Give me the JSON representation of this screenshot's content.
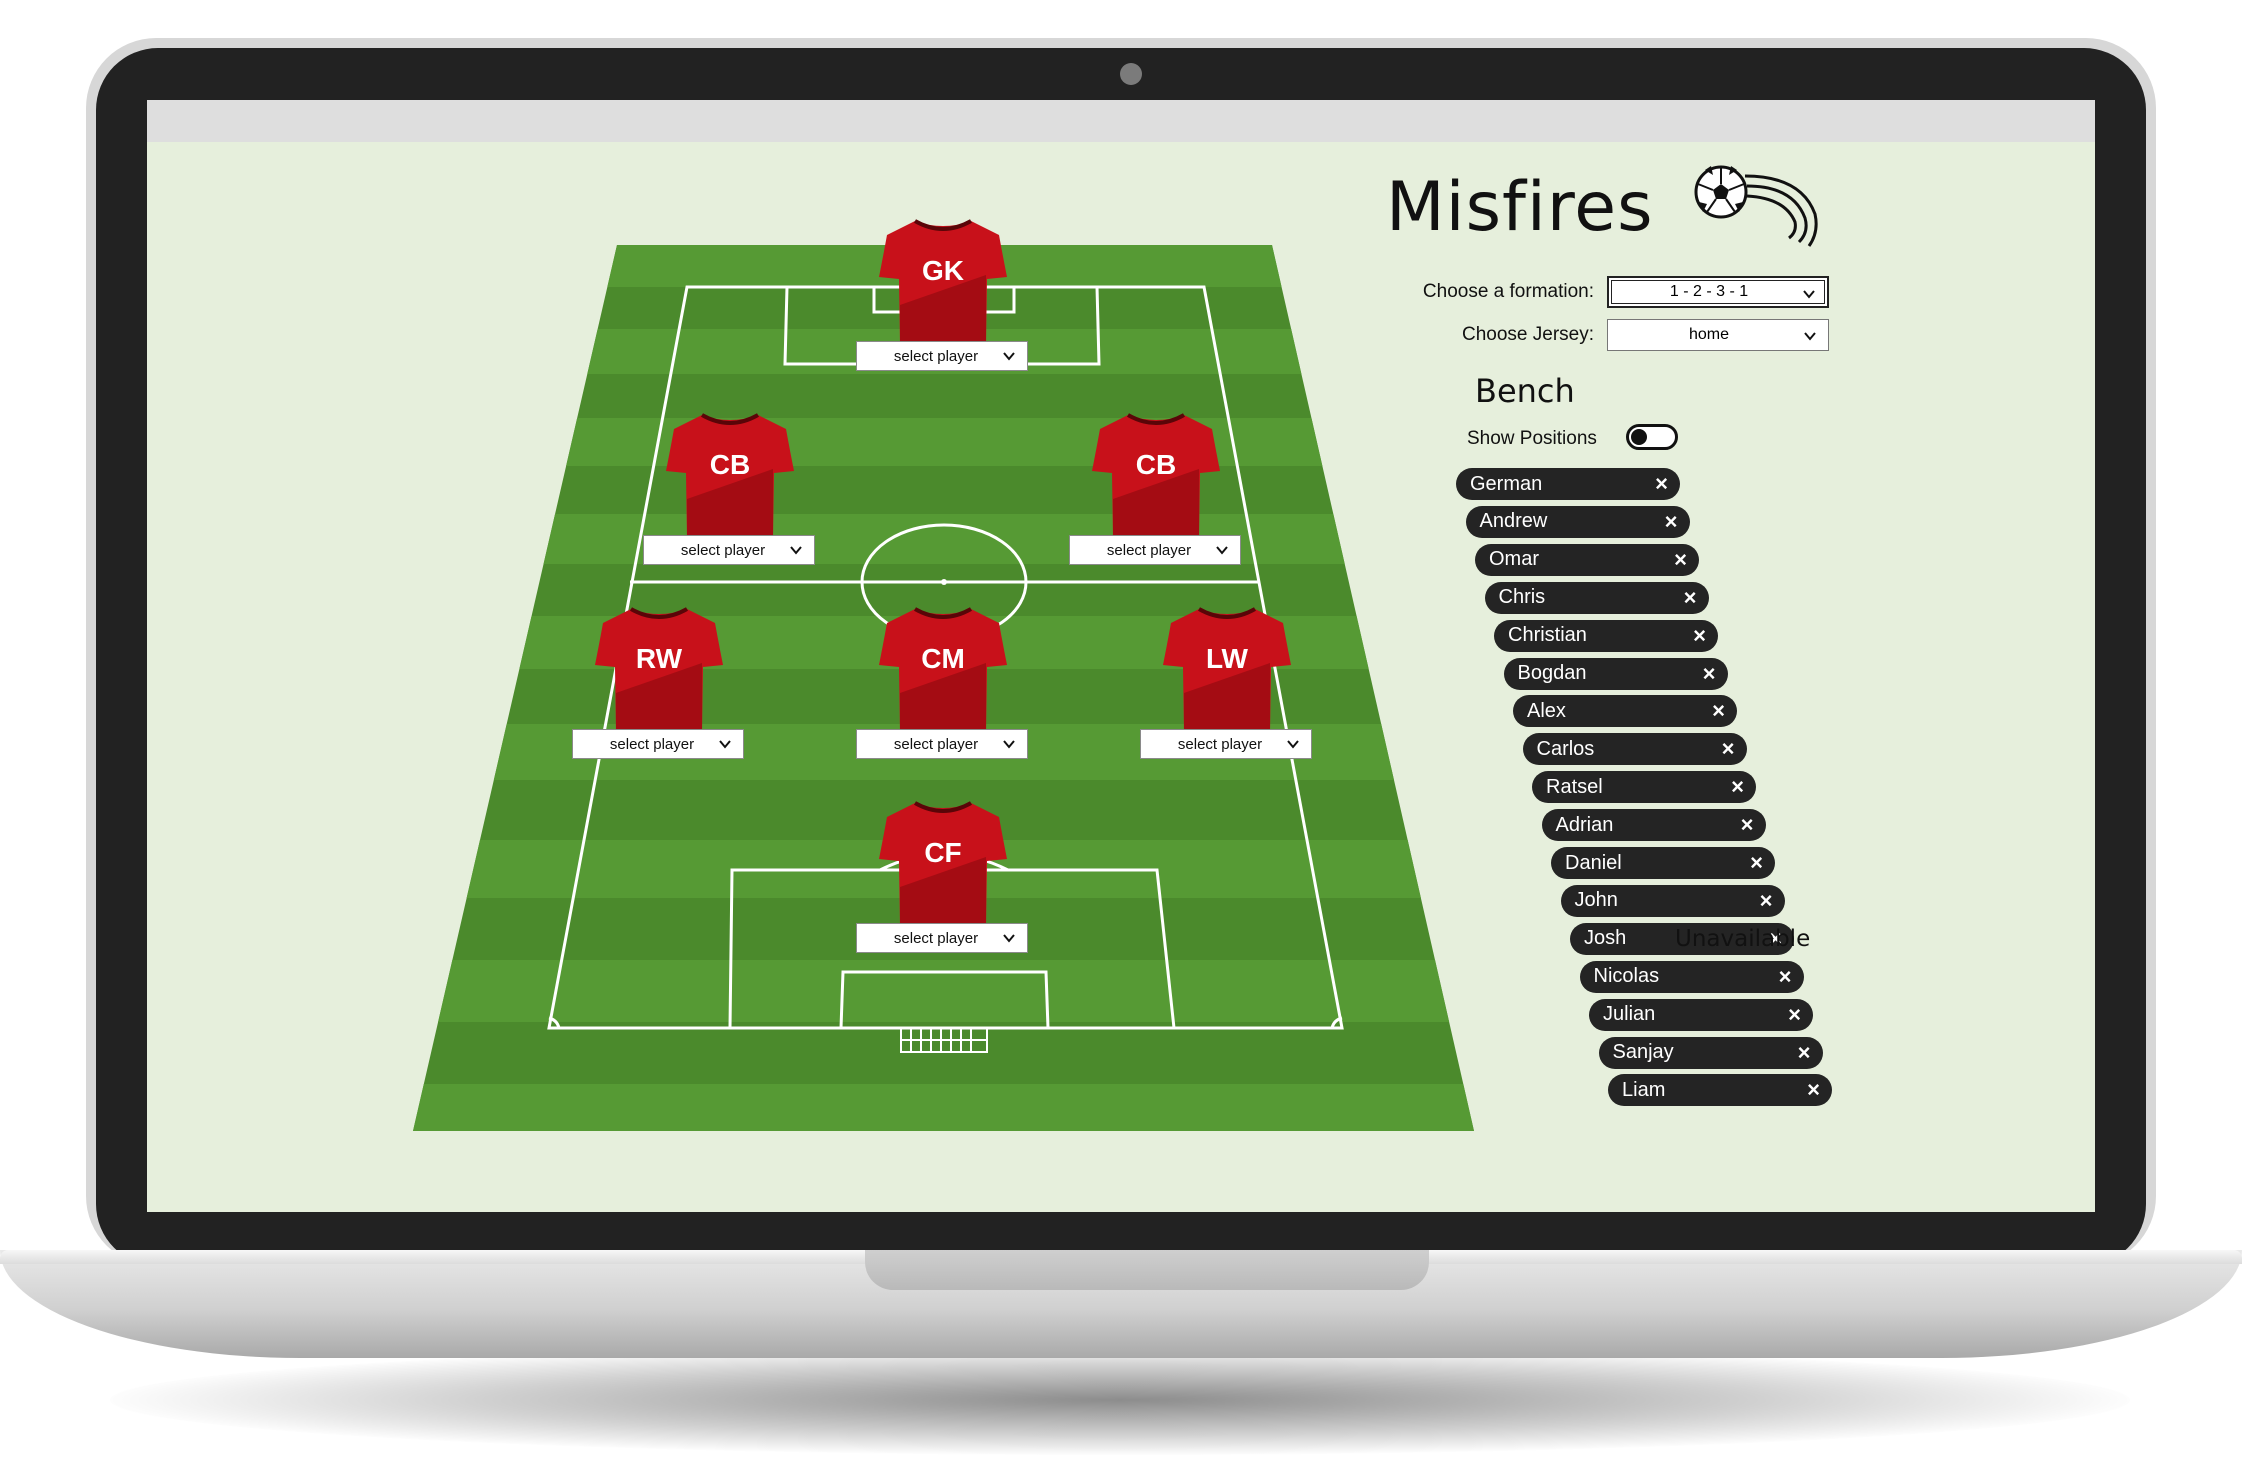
{
  "app": {
    "title": "Misfires",
    "logo_icon": "soccer-ball-icon"
  },
  "controls": {
    "formation_label": "Choose a formation:",
    "formation_value": "1 - 2 - 3 - 1",
    "jersey_label": "Choose Jersey:",
    "jersey_value": "home"
  },
  "bench": {
    "title": "Bench",
    "show_positions_label": "Show Positions",
    "show_positions_on": false,
    "players": [
      "German",
      "Andrew",
      "Omar",
      "Chris",
      "Christian",
      "Bogdan",
      "Alex",
      "Carlos",
      "Ratsel",
      "Adrian",
      "Daniel",
      "John",
      "Josh",
      "Nicolas",
      "Julian",
      "Sanjay",
      "Liam"
    ],
    "remove_icon": "close-icon",
    "unavailable_label": "Unavailable"
  },
  "pitch": {
    "jersey_color": "#c8111a",
    "select_placeholder": "select player",
    "players": [
      {
        "pos": "GK",
        "select_value": "select player"
      },
      {
        "pos": "CB",
        "select_value": "select player"
      },
      {
        "pos": "CB",
        "select_value": "select player"
      },
      {
        "pos": "RW",
        "select_value": "select player"
      },
      {
        "pos": "CM",
        "select_value": "select player"
      },
      {
        "pos": "LW",
        "select_value": "select player"
      },
      {
        "pos": "CF",
        "select_value": "select player"
      }
    ]
  }
}
